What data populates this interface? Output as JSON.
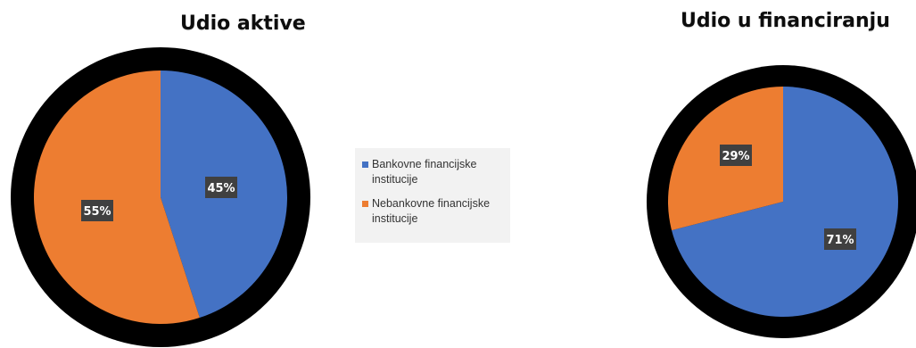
{
  "chart_data": [
    {
      "type": "pie",
      "title": "Udio aktive",
      "slices": [
        {
          "label": "Bankovne financijske institucije",
          "value": 45,
          "display": "45%",
          "color": "#4472c4"
        },
        {
          "label": "Nebankovne financijske institucije",
          "value": 55,
          "display": "55%",
          "color": "#ed7d31"
        }
      ],
      "start_angle_deg": 0,
      "direction": "clockwise"
    },
    {
      "type": "pie",
      "title": "Udio u financiranju",
      "slices": [
        {
          "label": "Bankovne financijske institucije",
          "value": 71,
          "display": "71%",
          "color": "#4472c4"
        },
        {
          "label": "Nebankovne financijske institucije",
          "value": 29,
          "display": "29%",
          "color": "#ed7d31"
        }
      ],
      "start_angle_deg": 0,
      "direction": "clockwise"
    }
  ],
  "legend": {
    "placement": "center",
    "items": [
      {
        "label": "Bankovne financijske institucije",
        "color": "#4472c4"
      },
      {
        "label": "Nebankovne financijske institucije",
        "color": "#ed7d31"
      }
    ]
  },
  "colors": {
    "outline": "#000000",
    "data_label_bg": "#404040",
    "data_label_text": "#ffffff"
  }
}
